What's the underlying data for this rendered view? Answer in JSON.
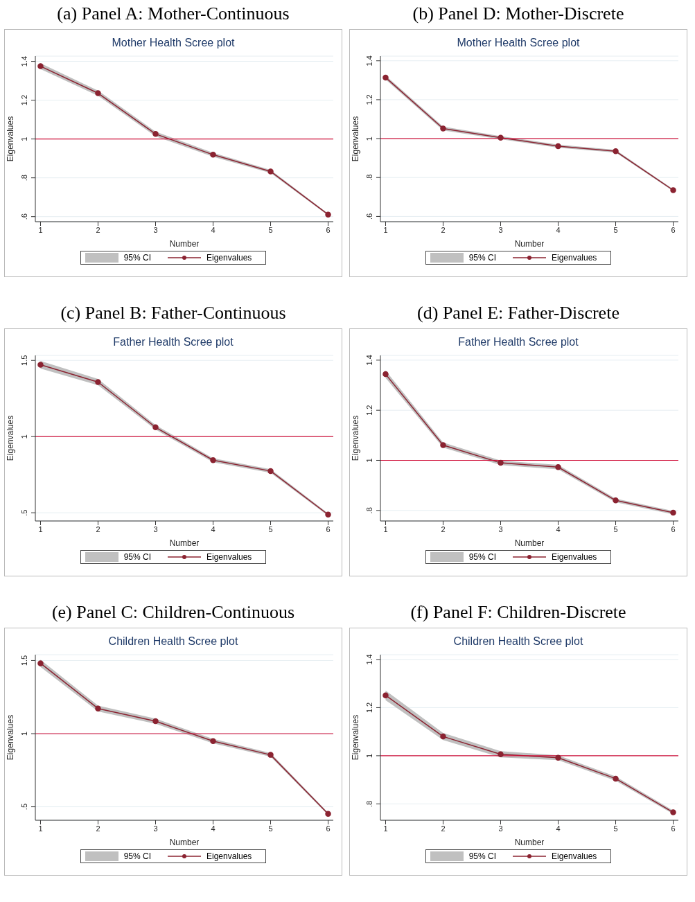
{
  "chart_data": [
    {
      "type": "line",
      "title": "(a) Panel A: Mother-Continuous",
      "subtitle": "Mother Health Scree plot",
      "xlabel": "Number",
      "ylabel": "Eigenvalues",
      "annotations": [
        "95% CI"
      ],
      "x": [
        1,
        2,
        3,
        4,
        5,
        6
      ],
      "xlim": [
        0.91,
        6.09
      ],
      "xticks": [
        1,
        2,
        3,
        4,
        5,
        6
      ],
      "ylim": [
        0.574,
        1.427
      ],
      "yticks": [
        {
          "value": 0.6,
          "label": ".6"
        },
        {
          "value": 0.8,
          "label": ".8"
        },
        1,
        1.2,
        1.4
      ],
      "grid": "y",
      "legend": "bottom",
      "marker": "circle",
      "line_style": "solid",
      "ref_lines": [
        {
          "axis": "y",
          "value": 1,
          "color": "#d0103a"
        }
      ],
      "series": [
        {
          "name": "Eigenvalues",
          "color": "#8b2331",
          "values": [
            1.375,
            1.236,
            1.026,
            0.919,
            0.833,
            0.611
          ],
          "lower": [
            1.36,
            1.223,
            1.014,
            0.909,
            0.825,
            0.606
          ],
          "upper": [
            1.39,
            1.249,
            1.038,
            0.929,
            0.841,
            0.616
          ]
        }
      ]
    },
    {
      "type": "line",
      "title": "(b) Panel D: Mother-Discrete",
      "subtitle": "Mother Health Scree plot",
      "xlabel": "Number",
      "ylabel": "Eigenvalues",
      "annotations": [
        "95% CI"
      ],
      "x": [
        1,
        2,
        3,
        4,
        5,
        6
      ],
      "xlim": [
        0.91,
        6.09
      ],
      "xticks": [
        1,
        2,
        3,
        4,
        5,
        6
      ],
      "ylim": [
        0.573,
        1.424
      ],
      "yticks": [
        {
          "value": 0.6,
          "label": ".6"
        },
        {
          "value": 0.8,
          "label": ".8"
        },
        1,
        1.2,
        1.4
      ],
      "grid": "y",
      "legend": "bottom",
      "marker": "circle",
      "line_style": "solid",
      "ref_lines": [
        {
          "axis": "y",
          "value": 1,
          "color": "#d0103a"
        }
      ],
      "series": [
        {
          "name": "Eigenvalues",
          "color": "#8b2331",
          "values": [
            1.314,
            1.052,
            1.005,
            0.961,
            0.935,
            0.735
          ],
          "lower": [
            1.304,
            1.042,
            0.997,
            0.953,
            0.928,
            0.73
          ],
          "upper": [
            1.324,
            1.062,
            1.013,
            0.969,
            0.942,
            0.74
          ]
        }
      ]
    },
    {
      "type": "line",
      "title": "(c) Panel B: Father-Continuous",
      "subtitle": "Father Health Scree plot",
      "xlabel": "Number",
      "ylabel": "Eigenvalues",
      "annotations": [
        "95% CI"
      ],
      "x": [
        1,
        2,
        3,
        4,
        5,
        6
      ],
      "xlim": [
        0.91,
        6.09
      ],
      "xticks": [
        1,
        2,
        3,
        4,
        5,
        6
      ],
      "ylim": [
        0.446,
        1.533
      ],
      "yticks": [
        {
          "value": 0.5,
          "label": ".5"
        },
        1,
        1.5
      ],
      "grid": "y",
      "legend": "bottom",
      "marker": "circle",
      "line_style": "solid",
      "ref_lines": [
        {
          "axis": "y",
          "value": 1,
          "color": "#d0103a"
        }
      ],
      "series": [
        {
          "name": "Eigenvalues",
          "color": "#8b2331",
          "values": [
            1.472,
            1.358,
            1.061,
            0.845,
            0.774,
            0.488
          ],
          "lower": [
            1.447,
            1.338,
            1.046,
            0.832,
            0.762,
            0.48
          ],
          "upper": [
            1.497,
            1.378,
            1.076,
            0.858,
            0.786,
            0.496
          ]
        }
      ]
    },
    {
      "type": "line",
      "title": "(d) Panel E: Father-Discrete",
      "subtitle": "Father Health Scree plot",
      "xlabel": "Number",
      "ylabel": "Eigenvalues",
      "annotations": [
        "95% CI"
      ],
      "x": [
        1,
        2,
        3,
        4,
        5,
        6
      ],
      "xlim": [
        0.91,
        6.09
      ],
      "xticks": [
        1,
        2,
        3,
        4,
        5,
        6
      ],
      "ylim": [
        0.758,
        1.419
      ],
      "yticks": [
        {
          "value": 0.8,
          "label": ".8"
        },
        1,
        1.2,
        1.4
      ],
      "grid": "y",
      "legend": "bottom",
      "marker": "circle",
      "line_style": "solid",
      "ref_lines": [
        {
          "axis": "y",
          "value": 1,
          "color": "#d0103a"
        }
      ],
      "series": [
        {
          "name": "Eigenvalues",
          "color": "#8b2331",
          "values": [
            1.344,
            1.061,
            0.99,
            0.973,
            0.84,
            0.791
          ],
          "lower": [
            1.329,
            1.051,
            0.981,
            0.964,
            0.833,
            0.784
          ],
          "upper": [
            1.359,
            1.071,
            0.999,
            0.982,
            0.847,
            0.798
          ]
        }
      ]
    },
    {
      "type": "line",
      "title": "(e) Panel C: Children-Continuous",
      "subtitle": "Children Health Scree plot",
      "xlabel": "Number",
      "ylabel": "Eigenvalues",
      "annotations": [
        "95% CI"
      ],
      "x": [
        1,
        2,
        3,
        4,
        5,
        6
      ],
      "xlim": [
        0.91,
        6.09
      ],
      "xticks": [
        1,
        2,
        3,
        4,
        5,
        6
      ],
      "ylim": [
        0.408,
        1.54
      ],
      "yticks": [
        {
          "value": 0.5,
          "label": ".5"
        },
        1,
        1.5
      ],
      "grid": "y",
      "legend": "bottom",
      "marker": "circle",
      "line_style": "solid",
      "ref_lines": [
        {
          "axis": "y",
          "value": 1,
          "color": "#d0103a"
        }
      ],
      "series": [
        {
          "name": "Eigenvalues",
          "color": "#8b2331",
          "values": [
            1.481,
            1.172,
            1.085,
            0.949,
            0.855,
            0.452
          ],
          "lower": [
            1.456,
            1.152,
            1.067,
            0.934,
            0.843,
            0.444
          ],
          "upper": [
            1.506,
            1.192,
            1.103,
            0.964,
            0.867,
            0.46
          ]
        }
      ]
    },
    {
      "type": "line",
      "title": "(f) Panel F: Children-Discrete",
      "subtitle": "Children Health Scree plot",
      "xlabel": "Number",
      "ylabel": "Eigenvalues",
      "annotations": [
        "95% CI"
      ],
      "x": [
        1,
        2,
        3,
        4,
        5,
        6
      ],
      "xlim": [
        0.91,
        6.09
      ],
      "xticks": [
        1,
        2,
        3,
        4,
        5,
        6
      ],
      "ylim": [
        0.732,
        1.42
      ],
      "yticks": [
        {
          "value": 0.8,
          "label": ".8"
        },
        1,
        1.2,
        1.4
      ],
      "grid": "y",
      "legend": "bottom",
      "marker": "circle",
      "line_style": "solid",
      "ref_lines": [
        {
          "axis": "y",
          "value": 1,
          "color": "#d0103a"
        }
      ],
      "series": [
        {
          "name": "Eigenvalues",
          "color": "#8b2331",
          "values": [
            1.251,
            1.08,
            1.006,
            0.992,
            0.905,
            0.765
          ],
          "lower": [
            1.231,
            1.065,
            0.993,
            0.982,
            0.896,
            0.758
          ],
          "upper": [
            1.271,
            1.095,
            1.019,
            1.002,
            0.914,
            0.772
          ]
        }
      ]
    }
  ]
}
